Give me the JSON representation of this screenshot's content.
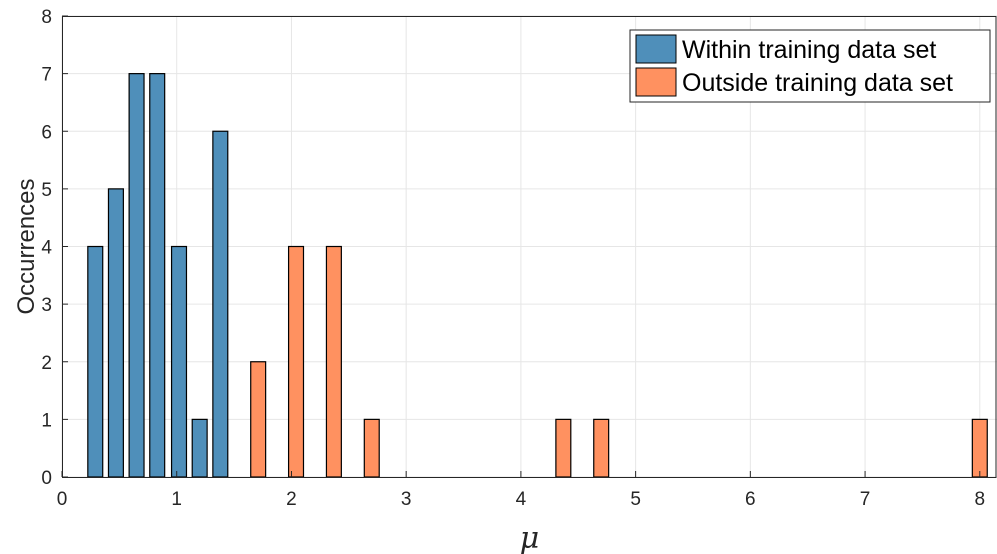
{
  "chart_data": {
    "type": "bar",
    "xlabel": "μ",
    "ylabel": "Occurrences",
    "xlim": [
      0,
      8.15
    ],
    "ylim": [
      0,
      8
    ],
    "xticks": [
      0,
      1,
      2,
      3,
      4,
      5,
      6,
      7,
      8
    ],
    "yticks": [
      0,
      1,
      2,
      3,
      4,
      5,
      6,
      7,
      8
    ],
    "grid": true,
    "bar_width": 0.13,
    "legend_position": "top-right",
    "series": [
      {
        "name": "Within training data set",
        "color": "#4f8fba",
        "points": [
          {
            "x": 0.29,
            "y": 4
          },
          {
            "x": 0.47,
            "y": 5
          },
          {
            "x": 0.65,
            "y": 7
          },
          {
            "x": 0.83,
            "y": 7
          },
          {
            "x": 1.02,
            "y": 4
          },
          {
            "x": 1.2,
            "y": 1
          },
          {
            "x": 1.38,
            "y": 6
          }
        ]
      },
      {
        "name": "Outside training data set",
        "color": "#ff9160",
        "points": [
          {
            "x": 1.71,
            "y": 2
          },
          {
            "x": 2.04,
            "y": 4
          },
          {
            "x": 2.37,
            "y": 4
          },
          {
            "x": 2.7,
            "y": 1
          },
          {
            "x": 4.37,
            "y": 1
          },
          {
            "x": 4.7,
            "y": 1
          },
          {
            "x": 8.0,
            "y": 1
          }
        ]
      }
    ]
  }
}
